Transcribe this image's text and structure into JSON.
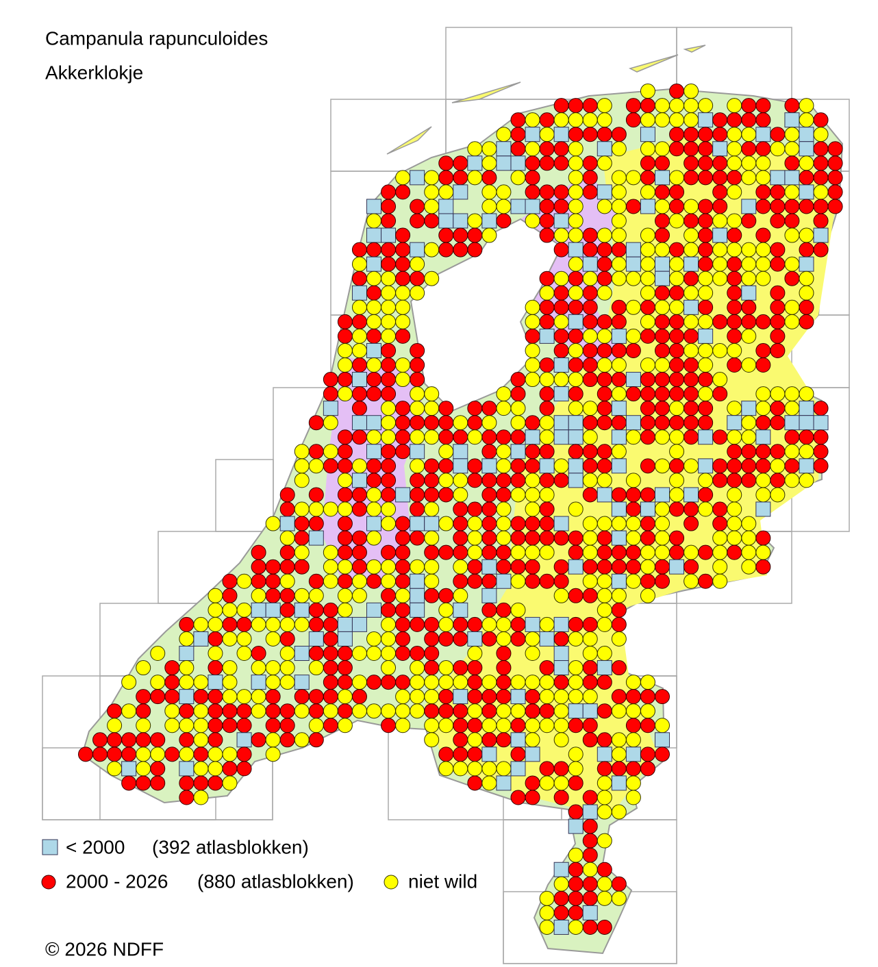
{
  "map": {
    "title": "Campanula rapunculoides",
    "subtitle": "Akkerklokje"
  },
  "legend": [
    {
      "symbol": "< 2000",
      "count": "(392 atlasblokken)"
    },
    {
      "symbol": "2000 - 2026",
      "count": "(880 atlasblokken)"
    },
    {
      "symbol": "niet wild"
    }
  ],
  "copyright": "© 2026 NDFF"
}
